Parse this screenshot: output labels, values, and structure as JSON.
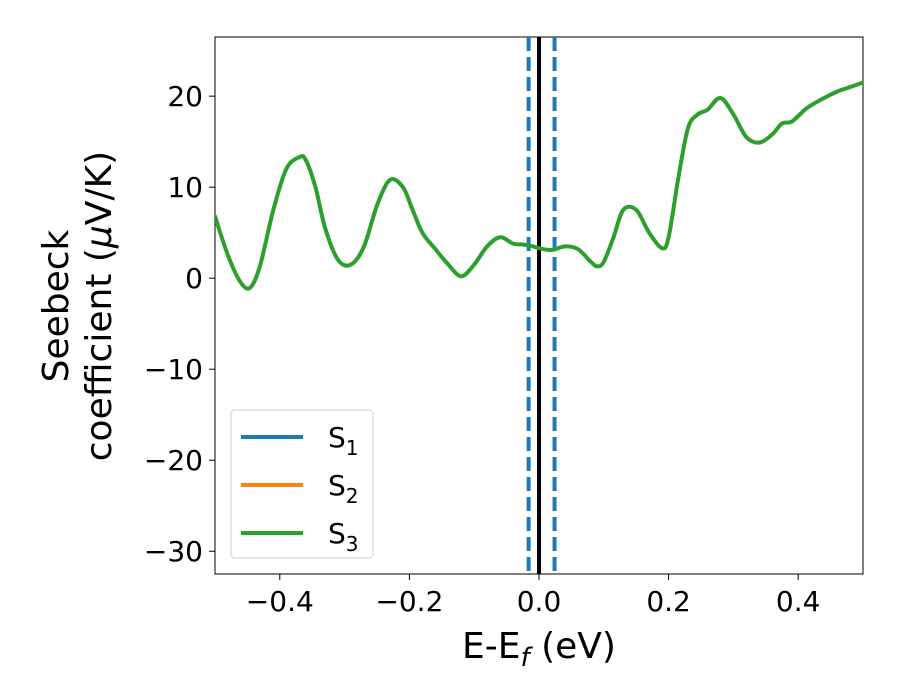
{
  "chart_data": {
    "type": "line",
    "xlabel": {
      "main": "E-E",
      "sub": "f",
      "unit": " (eV)"
    },
    "ylabel": {
      "line1": "Seebeck",
      "line2_prefix": "coefficient  (",
      "mu": "μ",
      "line2_suffix": "V/K)"
    },
    "xlim": [
      -0.5,
      0.5
    ],
    "ylim": [
      -32.5,
      26.5
    ],
    "xticks": [
      -0.4,
      -0.2,
      0.0,
      0.2,
      0.4
    ],
    "xtick_labels": [
      "−0.4",
      "−0.2",
      "0.0",
      "0.2",
      "0.4"
    ],
    "yticks": [
      -30,
      -20,
      -10,
      0,
      10,
      20
    ],
    "ytick_labels": [
      "−30",
      "−20",
      "−10",
      "0",
      "10",
      "20"
    ],
    "legend_position": "lower-left",
    "vertical_lines": [
      {
        "x": -0.016,
        "style": "dashed",
        "color": "#1f77b4"
      },
      {
        "x": 0.0,
        "style": "solid",
        "color": "#000000"
      },
      {
        "x": 0.024,
        "style": "dashed",
        "color": "#1f77b4"
      }
    ],
    "series": [
      {
        "name": "S",
        "sub": "1",
        "color": "#1f77b4",
        "x": [],
        "y": []
      },
      {
        "name": "S",
        "sub": "2",
        "color": "#ff7f0e",
        "x": [],
        "y": []
      },
      {
        "name": "S",
        "sub": "3",
        "color": "#2ca02c",
        "x": [
          -0.5,
          -0.48,
          -0.46,
          -0.445,
          -0.43,
          -0.41,
          -0.39,
          -0.37,
          -0.36,
          -0.345,
          -0.33,
          -0.31,
          -0.29,
          -0.27,
          -0.25,
          -0.23,
          -0.21,
          -0.195,
          -0.18,
          -0.16,
          -0.14,
          -0.12,
          -0.1,
          -0.08,
          -0.06,
          -0.04,
          -0.025,
          -0.01,
          0.0,
          0.02,
          0.04,
          0.06,
          0.08,
          0.09,
          0.1,
          0.115,
          0.13,
          0.15,
          0.17,
          0.19,
          0.2,
          0.215,
          0.23,
          0.245,
          0.26,
          0.28,
          0.3,
          0.32,
          0.34,
          0.36,
          0.375,
          0.39,
          0.41,
          0.42,
          0.44,
          0.46,
          0.48,
          0.5
        ],
        "y": [
          6.8,
          2.5,
          -0.5,
          -1.0,
          1.5,
          7.5,
          12.0,
          13.3,
          13.0,
          10.0,
          5.5,
          2.0,
          1.5,
          3.5,
          8.0,
          10.8,
          10.0,
          7.5,
          5.0,
          3.2,
          1.5,
          0.2,
          1.5,
          3.5,
          4.5,
          3.8,
          3.7,
          3.5,
          3.3,
          3.1,
          3.5,
          3.2,
          1.8,
          1.3,
          1.8,
          4.5,
          7.5,
          7.5,
          5.0,
          3.3,
          4.5,
          11.0,
          16.5,
          18.0,
          18.5,
          19.8,
          18.0,
          15.5,
          14.9,
          15.8,
          17.0,
          17.2,
          18.5,
          19.0,
          19.8,
          20.5,
          21.0,
          21.5
        ],
        "notes": []
      }
    ]
  }
}
